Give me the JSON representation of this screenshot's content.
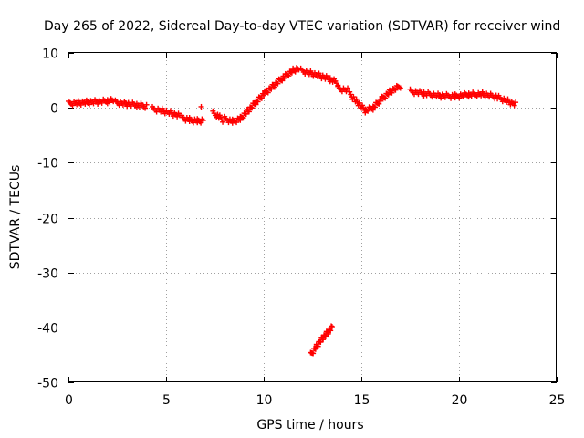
{
  "chart_data": {
    "type": "scatter",
    "title": "Day 265 of 2022, Sidereal Day-to-day VTEC variation (SDTVAR) for receiver wind",
    "xlabel": "GPS time / hours",
    "ylabel": "SDTVAR / TECUs",
    "xlim": [
      0,
      25
    ],
    "ylim": [
      -50,
      10
    ],
    "xticks": [
      "0",
      "5",
      "10",
      "15",
      "20",
      "25"
    ],
    "yticks": [
      "10",
      "0",
      "-10",
      "-20",
      "-30",
      "-40",
      "-50"
    ],
    "grid": true,
    "marker": "plus",
    "color": "#ff0000",
    "series": [
      {
        "name": "SDTVAR",
        "segments": [
          {
            "x": [
              0.0,
              0.5,
              1.0,
              1.5,
              2.0,
              2.3
            ],
            "y": [
              0.8,
              0.9,
              1.0,
              1.1,
              1.2,
              1.3
            ]
          },
          {
            "x": [
              2.4,
              3.0,
              3.5,
              4.0
            ],
            "y": [
              1.0,
              0.7,
              0.5,
              0.3
            ]
          },
          {
            "x": [
              4.3,
              4.8,
              5.3,
              5.7
            ],
            "y": [
              -0.2,
              -0.5,
              -1.0,
              -1.5
            ]
          },
          {
            "x": [
              5.8,
              6.2,
              6.6,
              6.9
            ],
            "y": [
              -1.8,
              -2.2,
              -2.4,
              -2.3
            ]
          },
          {
            "x": [
              6.8
            ],
            "y": [
              0.2
            ]
          },
          {
            "x": [
              7.4,
              7.7,
              7.9
            ],
            "y": [
              -1.0,
              -1.6,
              -2.2
            ]
          },
          {
            "x": [
              8.0,
              8.4,
              8.8,
              9.2,
              9.6,
              10.0,
              10.5,
              11.0,
              11.5,
              11.8
            ],
            "y": [
              -2.0,
              -2.5,
              -2.0,
              -0.5,
              1.0,
              2.5,
              4.0,
              5.5,
              6.8,
              7.2
            ]
          },
          {
            "x": [
              11.9,
              12.4,
              12.9,
              13.4,
              13.8
            ],
            "y": [
              6.8,
              6.3,
              5.8,
              5.2,
              4.5
            ]
          },
          {
            "x": [
              13.8,
              14.3
            ],
            "y": [
              3.5,
              3.2
            ]
          },
          {
            "x": [
              14.4,
              14.8,
              15.2,
              15.6,
              16.0,
              16.5,
              17.0
            ],
            "y": [
              2.5,
              1.0,
              -0.5,
              0.0,
              1.5,
              3.0,
              4.0
            ]
          },
          {
            "x": [
              17.5,
              18.2,
              19.0,
              19.8,
              20.5,
              21.2,
              21.9,
              22.5,
              22.9
            ],
            "y": [
              3.0,
              2.6,
              2.2,
              2.1,
              2.4,
              2.5,
              2.0,
              1.2,
              0.6
            ]
          },
          {
            "x": [
              12.4,
              12.7,
              13.0,
              13.3,
              13.5
            ],
            "y": [
              -45.0,
              -43.5,
              -42.0,
              -40.8,
              -40.0
            ]
          }
        ]
      }
    ]
  }
}
